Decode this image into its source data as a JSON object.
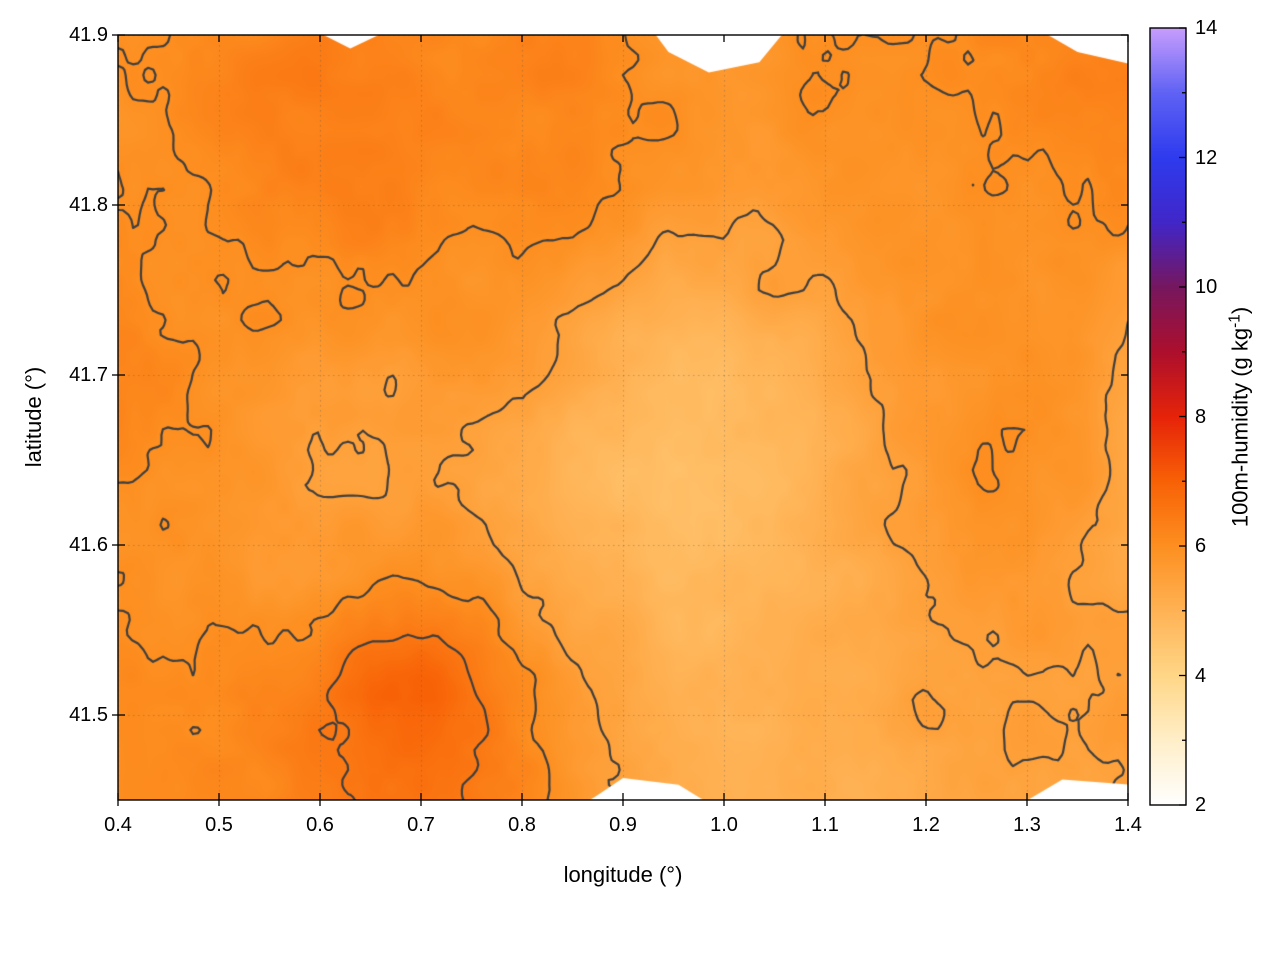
{
  "page": {
    "background": "#ffffff"
  },
  "chart_data": {
    "type": "heatmap",
    "title": "",
    "xlabel": "longitude (°)",
    "ylabel": "latitude (°)",
    "xlim": [
      0.4,
      1.4
    ],
    "ylim": [
      41.45,
      41.9
    ],
    "grid_on": true,
    "x_ticks": [
      "0.4",
      "0.5",
      "0.6",
      "0.7",
      "0.8",
      "0.9",
      "1.0",
      "1.1",
      "1.2",
      "1.3",
      "1.4"
    ],
    "x_tick_values": [
      0.4,
      0.5,
      0.6,
      0.7,
      0.8,
      0.9,
      1.0,
      1.1,
      1.2,
      1.3,
      1.4
    ],
    "y_ticks": [
      "41.5",
      "41.6",
      "41.7",
      "41.8",
      "41.9"
    ],
    "y_tick_values": [
      41.5,
      41.6,
      41.7,
      41.8,
      41.9
    ],
    "colorbar": {
      "label_pre": "100m-humidity (g kg",
      "label_sup": "-1",
      "label_post": ")",
      "min": 2,
      "max": 14,
      "ticks": [
        "2",
        "4",
        "6",
        "8",
        "10",
        "12",
        "14"
      ],
      "tick_values": [
        2,
        4,
        6,
        8,
        10,
        12,
        14
      ],
      "minor_tick_values": [
        3,
        5,
        7,
        9,
        11,
        13
      ],
      "colormap": [
        [
          2,
          "#ffffff"
        ],
        [
          3,
          "#ffeec8"
        ],
        [
          4,
          "#ffd687"
        ],
        [
          5,
          "#ffb254"
        ],
        [
          6,
          "#fd8f20"
        ],
        [
          7,
          "#f86106"
        ],
        [
          8,
          "#e62309"
        ],
        [
          9,
          "#ad0f2d"
        ],
        [
          10,
          "#76175f"
        ],
        [
          11,
          "#4126c8"
        ],
        [
          12,
          "#2e3bee"
        ],
        [
          13,
          "#5f62f4"
        ],
        [
          14,
          "#c79dfd"
        ]
      ]
    },
    "contour_levels": [
      5.5,
      6.0,
      6.5
    ],
    "contour_color": "#3f3f3f",
    "grid_line_color": "rgba(90,90,90,0.38)",
    "texture_noise": 0.12,
    "grid": {
      "x": [
        0.4,
        0.45,
        0.5,
        0.55,
        0.6,
        0.65,
        0.7,
        0.75,
        0.8,
        0.85,
        0.9,
        0.95,
        1.0,
        1.05,
        1.1,
        1.15,
        1.2,
        1.25,
        1.3,
        1.35,
        1.4
      ],
      "y": [
        41.9,
        41.87,
        41.84,
        41.81,
        41.78,
        41.75,
        41.72,
        41.69,
        41.66,
        41.63,
        41.6,
        41.57,
        41.54,
        41.51,
        41.48,
        41.45
      ],
      "values": [
        [
          6.0,
          6.1,
          6.1,
          6.2,
          6.3,
          6.3,
          6.2,
          6.1,
          6.2,
          6.2,
          6.1,
          5.9,
          5.8,
          5.9,
          6.0,
          6.0,
          6.0,
          6.1,
          6.2,
          6.2,
          6.1
        ],
        [
          6.0,
          6.1,
          6.2,
          6.3,
          6.4,
          6.4,
          6.3,
          6.2,
          6.2,
          6.3,
          6.1,
          5.9,
          5.8,
          5.9,
          6.0,
          6.0,
          6.0,
          6.1,
          6.2,
          6.3,
          6.2
        ],
        [
          5.9,
          6.0,
          6.1,
          6.3,
          6.4,
          6.4,
          6.3,
          6.2,
          6.1,
          6.2,
          6.1,
          5.9,
          5.8,
          5.8,
          5.9,
          5.9,
          6.0,
          6.0,
          6.1,
          6.2,
          6.1
        ],
        [
          5.9,
          5.9,
          6.0,
          6.2,
          6.3,
          6.3,
          6.2,
          6.1,
          6.1,
          6.1,
          6.0,
          5.8,
          5.7,
          5.7,
          5.8,
          5.9,
          5.9,
          6.0,
          6.0,
          6.1,
          6.0
        ],
        [
          6.0,
          5.9,
          6.0,
          6.1,
          6.1,
          6.2,
          6.1,
          6.0,
          6.1,
          6.0,
          5.7,
          5.5,
          5.4,
          5.4,
          5.6,
          5.8,
          5.9,
          5.9,
          6.0,
          6.0,
          5.9
        ],
        [
          6.1,
          6.0,
          6.0,
          6.0,
          6.0,
          6.0,
          6.0,
          5.9,
          5.9,
          5.7,
          5.4,
          5.2,
          5.1,
          5.6,
          5.4,
          5.7,
          5.8,
          5.9,
          5.9,
          5.9,
          5.7
        ],
        [
          6.2,
          6.1,
          6.0,
          5.9,
          5.8,
          5.8,
          5.8,
          5.8,
          5.7,
          5.4,
          5.1,
          4.9,
          4.9,
          5.0,
          5.3,
          5.6,
          5.8,
          5.9,
          6.0,
          5.8,
          5.5
        ],
        [
          6.2,
          6.1,
          5.9,
          5.8,
          5.6,
          5.5,
          5.6,
          5.6,
          5.5,
          5.2,
          4.9,
          4.8,
          4.8,
          4.9,
          5.2,
          5.5,
          5.7,
          5.9,
          6.0,
          5.8,
          5.4
        ],
        [
          6.1,
          6.0,
          5.9,
          5.7,
          5.5,
          5.4,
          5.5,
          5.5,
          5.3,
          5.0,
          4.8,
          4.7,
          4.8,
          4.9,
          5.1,
          5.4,
          5.7,
          5.9,
          6.0,
          5.8,
          5.3
        ],
        [
          6.0,
          5.9,
          5.8,
          5.7,
          5.5,
          5.5,
          5.6,
          5.5,
          5.2,
          5.0,
          4.8,
          4.7,
          4.8,
          4.9,
          5.1,
          5.4,
          5.6,
          5.9,
          5.9,
          5.7,
          5.3
        ],
        [
          5.9,
          5.9,
          5.8,
          5.7,
          5.6,
          5.7,
          5.8,
          5.6,
          5.3,
          5.1,
          4.9,
          4.8,
          4.8,
          4.9,
          5.1,
          5.3,
          5.6,
          5.8,
          5.8,
          5.6,
          5.3
        ],
        [
          5.9,
          5.9,
          5.9,
          5.8,
          5.9,
          6.1,
          6.2,
          6.0,
          5.6,
          5.3,
          5.0,
          4.9,
          4.9,
          5.0,
          5.1,
          5.3,
          5.5,
          5.7,
          5.7,
          5.5,
          5.4
        ],
        [
          6.0,
          6.0,
          6.0,
          6.0,
          6.2,
          6.6,
          6.7,
          6.4,
          5.9,
          5.5,
          5.2,
          5.0,
          4.9,
          5.0,
          5.1,
          5.2,
          5.4,
          5.6,
          5.6,
          5.5,
          5.5
        ],
        [
          6.0,
          6.1,
          6.1,
          6.1,
          6.4,
          6.9,
          7.0,
          6.6,
          6.1,
          5.7,
          5.3,
          5.1,
          5.0,
          5.0,
          5.1,
          5.2,
          5.6,
          5.4,
          5.5,
          5.5,
          5.6
        ],
        [
          6.0,
          6.1,
          6.1,
          6.2,
          6.4,
          6.8,
          6.9,
          6.6,
          6.2,
          5.8,
          5.4,
          5.2,
          5.0,
          5.0,
          5.1,
          5.1,
          5.2,
          5.4,
          5.5,
          5.5,
          5.6
        ],
        [
          6.0,
          6.0,
          6.1,
          6.2,
          6.3,
          6.6,
          6.7,
          6.5,
          6.2,
          5.9,
          5.5,
          5.2,
          5.1,
          5.0,
          5.1,
          5.1,
          5.2,
          5.3,
          5.4,
          5.5,
          5.6
        ]
      ]
    },
    "missing_regions": [
      [
        [
          0.93,
          41.902
        ],
        [
          1.06,
          41.902
        ],
        [
          1.035,
          41.884
        ],
        [
          0.985,
          41.878
        ],
        [
          0.945,
          41.89
        ]
      ],
      [
        [
          1.315,
          41.902
        ],
        [
          1.402,
          41.902
        ],
        [
          1.402,
          41.883
        ],
        [
          1.35,
          41.89
        ]
      ],
      [
        [
          0.597,
          41.902
        ],
        [
          0.665,
          41.902
        ],
        [
          0.63,
          41.892
        ]
      ],
      [
        [
          0.862,
          41.448
        ],
        [
          0.985,
          41.448
        ],
        [
          0.955,
          41.459
        ],
        [
          0.9,
          41.463
        ],
        [
          0.875,
          41.453
        ]
      ],
      [
        [
          1.295,
          41.448
        ],
        [
          1.402,
          41.448
        ],
        [
          1.402,
          41.459
        ],
        [
          1.335,
          41.462
        ]
      ]
    ]
  }
}
